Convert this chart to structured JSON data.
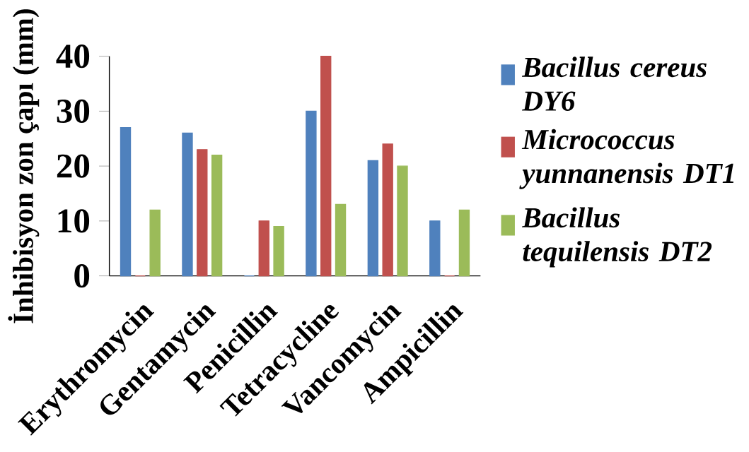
{
  "chart_data": {
    "type": "bar",
    "ylabel": "İnhibisyon zon çapı (mm)",
    "categories": [
      "Erythromycin",
      "Gentamycin",
      "Penicillin",
      "Tetracycline",
      "Vancomycin",
      "Ampicillin"
    ],
    "series": [
      {
        "name": "*Bacillus cereus DY6*",
        "color": "#4f81bd",
        "values": [
          27,
          26,
          0,
          30,
          21,
          10
        ]
      },
      {
        "name": "*Micrococcus yunnanensis DT1*",
        "color": "#c0504d",
        "values": [
          0,
          23,
          10,
          40,
          24,
          0
        ]
      },
      {
        "name": "*Bacillus tequilensis DT2*",
        "color": "#9bbb59",
        "values": [
          12,
          22,
          9,
          13,
          20,
          12
        ]
      }
    ],
    "ylim": [
      0,
      40
    ],
    "yticks": [
      0,
      10,
      20,
      30,
      40
    ],
    "grid": false,
    "legend": "right"
  }
}
